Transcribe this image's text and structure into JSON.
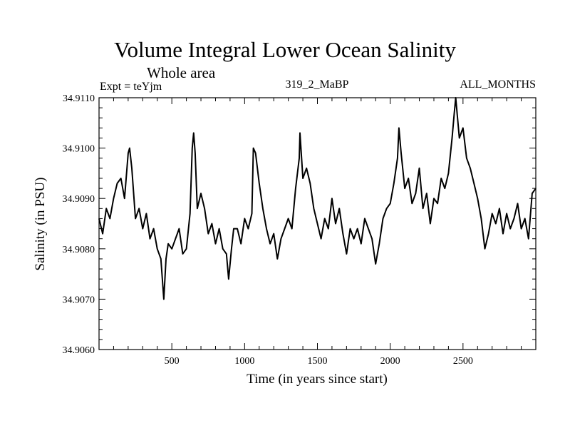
{
  "header": {
    "title": "Volume Integral Lower Ocean Salinity",
    "subtitle": "Whole area",
    "expt_label": "Expt = teYjm",
    "run_id": "319_2_MaBP",
    "period": "ALL_MONTHS"
  },
  "chart_data": {
    "type": "line",
    "title": "Volume Integral Lower Ocean Salinity",
    "subtitle": "Whole area",
    "xlabel": "Time (in years since start)",
    "ylabel": "Salinity (in PSU)",
    "xlim": [
      0,
      3000
    ],
    "ylim": [
      34.906,
      34.911
    ],
    "xticks": [
      500,
      1000,
      1500,
      2000,
      2500
    ],
    "xtick_labels": [
      "500",
      "1000",
      "1500",
      "2000",
      "2500"
    ],
    "yticks": [
      34.906,
      34.907,
      34.908,
      34.909,
      34.91,
      34.911
    ],
    "ytick_labels": [
      "34.9060",
      "34.9070",
      "34.9080",
      "34.9090",
      "34.9100",
      "34.9110"
    ],
    "grid": false,
    "series": [
      {
        "name": "Salinity",
        "x": [
          0,
          25,
          50,
          75,
          100,
          125,
          150,
          175,
          200,
          210,
          225,
          250,
          275,
          300,
          325,
          350,
          375,
          400,
          425,
          445,
          460,
          475,
          500,
          525,
          550,
          575,
          600,
          625,
          640,
          650,
          660,
          675,
          700,
          725,
          750,
          775,
          800,
          825,
          850,
          875,
          890,
          910,
          925,
          950,
          975,
          1000,
          1025,
          1050,
          1060,
          1075,
          1100,
          1125,
          1150,
          1175,
          1200,
          1225,
          1250,
          1275,
          1300,
          1325,
          1350,
          1375,
          1380,
          1400,
          1425,
          1450,
          1475,
          1500,
          1525,
          1550,
          1575,
          1600,
          1625,
          1650,
          1675,
          1700,
          1725,
          1750,
          1775,
          1800,
          1825,
          1850,
          1875,
          1900,
          1925,
          1950,
          1975,
          2000,
          2025,
          2050,
          2060,
          2075,
          2100,
          2125,
          2150,
          2175,
          2200,
          2225,
          2250,
          2275,
          2300,
          2325,
          2350,
          2375,
          2400,
          2425,
          2440,
          2450,
          2475,
          2500,
          2525,
          2550,
          2575,
          2600,
          2625,
          2650,
          2675,
          2700,
          2725,
          2750,
          2775,
          2800,
          2825,
          2850,
          2875,
          2900,
          2925,
          2950,
          2975,
          3000
        ],
        "values": [
          34.9086,
          34.9083,
          34.9088,
          34.9086,
          34.909,
          34.9093,
          34.9094,
          34.909,
          34.9099,
          34.91,
          34.9096,
          34.9086,
          34.9088,
          34.9084,
          34.9087,
          34.9082,
          34.9084,
          34.908,
          34.9078,
          34.907,
          34.9078,
          34.9081,
          34.908,
          34.9082,
          34.9084,
          34.9079,
          34.908,
          34.9087,
          34.91,
          34.9103,
          34.9099,
          34.9088,
          34.9091,
          34.9088,
          34.9083,
          34.9085,
          34.9081,
          34.9084,
          34.908,
          34.9079,
          34.9074,
          34.908,
          34.9084,
          34.9084,
          34.9081,
          34.9086,
          34.9084,
          34.9087,
          34.91,
          34.9099,
          34.9093,
          34.9088,
          34.9084,
          34.9081,
          34.9083,
          34.9078,
          34.9082,
          34.9084,
          34.9086,
          34.9084,
          34.9092,
          34.9098,
          34.9103,
          34.9094,
          34.9096,
          34.9093,
          34.9088,
          34.9085,
          34.9082,
          34.9086,
          34.9084,
          34.909,
          34.9085,
          34.9088,
          34.9083,
          34.9079,
          34.9084,
          34.9082,
          34.9084,
          34.9081,
          34.9086,
          34.9084,
          34.9082,
          34.9077,
          34.9081,
          34.9086,
          34.9088,
          34.9089,
          34.9093,
          34.9098,
          34.9104,
          34.9099,
          34.9092,
          34.9094,
          34.9089,
          34.9091,
          34.9096,
          34.9088,
          34.9091,
          34.9085,
          34.909,
          34.9089,
          34.9094,
          34.9092,
          34.9095,
          34.9102,
          34.9107,
          34.911,
          34.9102,
          34.9104,
          34.9098,
          34.9096,
          34.9093,
          34.909,
          34.9086,
          34.908,
          34.9083,
          34.9087,
          34.9085,
          34.9088,
          34.9083,
          34.9087,
          34.9084,
          34.9086,
          34.9089,
          34.9084,
          34.9086,
          34.9082,
          34.9091,
          34.9092
        ]
      }
    ]
  }
}
